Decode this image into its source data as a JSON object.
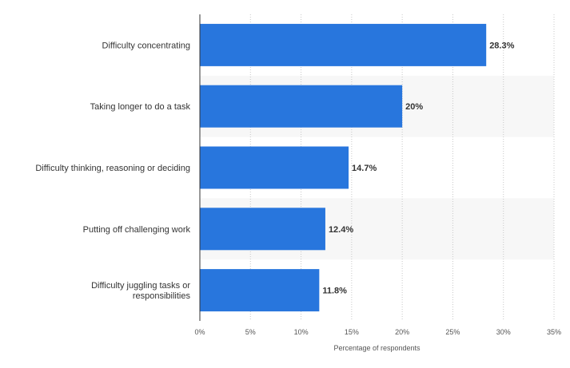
{
  "chart_data": {
    "type": "bar",
    "orientation": "horizontal",
    "categories": [
      "Difficulty concentrating",
      "Taking longer to do a task",
      "Difficulty thinking, reasoning or deciding",
      "Putting off challenging work",
      "Difficulty juggling tasks or responsibilities"
    ],
    "category_lines": [
      [
        "Difficulty concentrating"
      ],
      [
        "Taking longer to do a task"
      ],
      [
        "Difficulty thinking, reasoning or deciding"
      ],
      [
        "Putting off challenging work"
      ],
      [
        "Difficulty juggling tasks or",
        "responsibilities"
      ]
    ],
    "values": [
      28.3,
      20,
      14.7,
      12.4,
      11.8
    ],
    "value_labels": [
      "28.3%",
      "20%",
      "14.7%",
      "12.4%",
      "11.8%"
    ],
    "xlim": [
      0,
      35
    ],
    "xticks": [
      0,
      5,
      10,
      15,
      20,
      25,
      30,
      35
    ],
    "xtick_labels": [
      "0%",
      "5%",
      "10%",
      "15%",
      "20%",
      "25%",
      "30%",
      "35%"
    ],
    "xlabel": "Percentage of respondents",
    "grid": "vertical-dotted",
    "bar_color": "#2876dd",
    "band_color": "#f7f7f7"
  }
}
